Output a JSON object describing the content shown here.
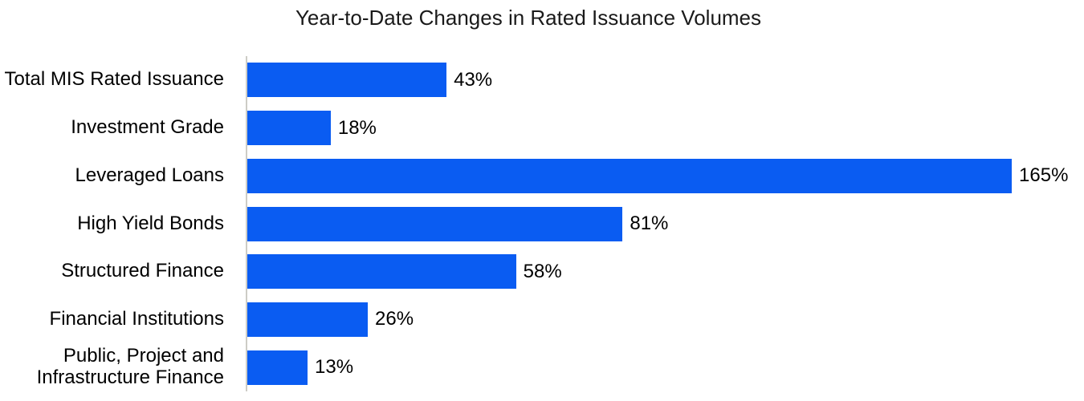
{
  "chart_data": {
    "type": "bar",
    "orientation": "horizontal",
    "title": "Year-to-Date Changes in Rated Issuance Volumes",
    "categories": [
      "Total MIS Rated Issuance",
      "Investment Grade",
      "Leveraged Loans",
      "High Yield Bonds",
      "Structured Finance",
      "Financial Institutions",
      "Public, Project and Infrastructure Finance"
    ],
    "values": [
      43,
      18,
      165,
      81,
      58,
      26,
      13
    ],
    "data_labels": [
      "43%",
      "18%",
      "165%",
      "81%",
      "58%",
      "26%",
      "13%"
    ],
    "unit": "%",
    "xlim": [
      0,
      180
    ],
    "grid": false,
    "legend": false,
    "bar_color": "#0A5CF2",
    "axis_line_color": "#CDCCC6",
    "text_color": "#000000",
    "background_color": "#FFFFFF"
  }
}
